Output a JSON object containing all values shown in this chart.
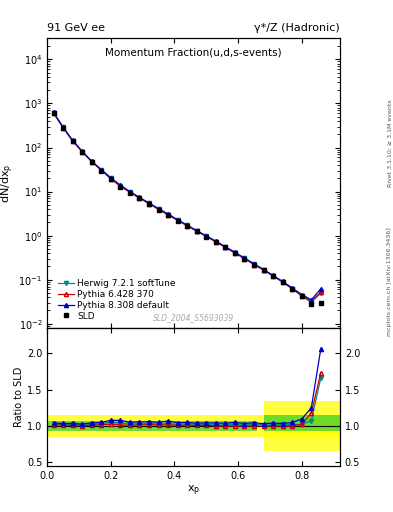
{
  "title_top": "91 GeV ee",
  "title_right": "γ*/Z (Hadronic)",
  "plot_title": "Momentum Fraction(u,d,s-events)",
  "ylabel_main": "dN/dx_p",
  "ylabel_ratio": "Ratio to SLD",
  "xlabel": "x_p",
  "right_label_top": "Rivet 3.1.10; ≥ 3.1M events",
  "right_label_bot": "mcplots.cern.ch [arXiv:1306.3436]",
  "watermark": "SLD_2004_S5693039",
  "xp": [
    0.02,
    0.05,
    0.08,
    0.11,
    0.14,
    0.17,
    0.2,
    0.23,
    0.26,
    0.29,
    0.32,
    0.35,
    0.38,
    0.41,
    0.44,
    0.47,
    0.5,
    0.53,
    0.56,
    0.59,
    0.62,
    0.65,
    0.68,
    0.71,
    0.74,
    0.77,
    0.8,
    0.83,
    0.86
  ],
  "sld_y": [
    600,
    280,
    140,
    80,
    47,
    30,
    19,
    13,
    9.5,
    7.0,
    5.2,
    3.9,
    2.9,
    2.2,
    1.65,
    1.25,
    0.95,
    0.72,
    0.54,
    0.4,
    0.3,
    0.22,
    0.165,
    0.12,
    0.088,
    0.062,
    0.042,
    0.028,
    0.03
  ],
  "herwig_y": [
    620,
    285,
    143,
    81,
    48,
    31,
    20,
    13.5,
    9.8,
    7.2,
    5.4,
    4.0,
    3.0,
    2.25,
    1.7,
    1.28,
    0.97,
    0.73,
    0.55,
    0.41,
    0.305,
    0.225,
    0.168,
    0.122,
    0.09,
    0.063,
    0.043,
    0.03,
    0.05
  ],
  "pythia6_y": [
    610,
    283,
    141,
    80,
    47.5,
    30.5,
    19.5,
    13.2,
    9.6,
    7.1,
    5.3,
    3.95,
    2.95,
    2.22,
    1.67,
    1.26,
    0.96,
    0.72,
    0.54,
    0.4,
    0.3,
    0.22,
    0.165,
    0.12,
    0.088,
    0.062,
    0.043,
    0.033,
    0.052
  ],
  "pythia8_y": [
    625,
    290,
    145,
    82,
    49,
    31.5,
    20.5,
    14.0,
    10.0,
    7.4,
    5.5,
    4.1,
    3.1,
    2.3,
    1.73,
    1.3,
    0.99,
    0.75,
    0.56,
    0.42,
    0.31,
    0.23,
    0.17,
    0.125,
    0.091,
    0.065,
    0.046,
    0.035,
    0.062
  ],
  "sld_color": "#000000",
  "herwig_color": "#008B8B",
  "pythia6_color": "#cc0000",
  "pythia8_color": "#0000cc",
  "ylim_main": [
    0.008,
    30000
  ],
  "ylim_ratio": [
    0.45,
    2.35
  ],
  "xlim": [
    0.0,
    0.92
  ],
  "yellow_band_xlo": 0.0,
  "yellow_band_xhi": 0.92,
  "yellow_band_ylo": 0.85,
  "yellow_band_yhi": 1.15,
  "green_band_xlo": 0.0,
  "green_band_xhi": 0.66,
  "green_band_ylo": 0.93,
  "green_band_yhi": 1.07,
  "yellow2_band_xlo": 0.68,
  "yellow2_band_xhi": 0.92,
  "yellow2_band_ylo": 0.65,
  "yellow2_band_yhi": 1.35,
  "green2_band_xlo": 0.68,
  "green2_band_xhi": 0.92,
  "green2_band_ylo": 0.93,
  "green2_band_yhi": 1.15
}
